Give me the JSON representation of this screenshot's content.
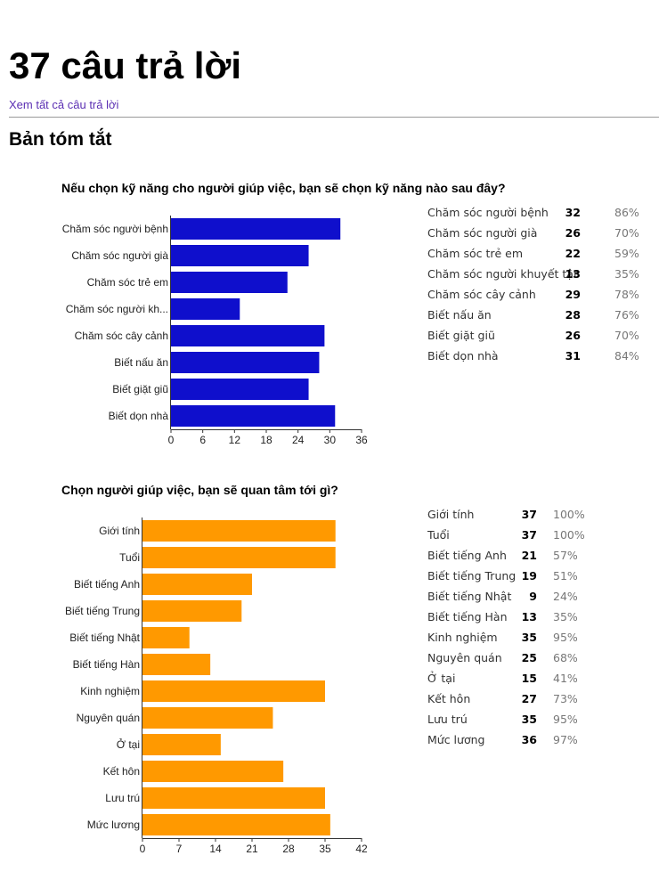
{
  "header": {
    "title": "37 câu trả lời",
    "view_all_link": "Xem tất cả câu trả lời",
    "summary_heading": "Bản tóm tắt"
  },
  "colors": {
    "q1_bar": "#0f0fcc",
    "q2_bar": "#ff9900",
    "link": "#5b2fb3"
  },
  "questions": [
    {
      "title": "Nếu chọn kỹ năng cho người giúp việc, bạn sẽ chọn kỹ năng nào sau đây?",
      "rows": [
        {
          "label": "Chăm sóc người bệnh",
          "count": "32",
          "percent": "86%"
        },
        {
          "label": "Chăm sóc người già",
          "count": "26",
          "percent": "70%"
        },
        {
          "label": "Chăm sóc trẻ em",
          "count": "22",
          "percent": "59%"
        },
        {
          "label": "Chăm sóc người khuyết tật",
          "count": "13",
          "percent": "35%"
        },
        {
          "label": "Chăm sóc cây cảnh",
          "count": "29",
          "percent": "78%"
        },
        {
          "label": "Biết nấu ăn",
          "count": "28",
          "percent": "76%"
        },
        {
          "label": "Biết giặt giũ",
          "count": "26",
          "percent": "70%"
        },
        {
          "label": "Biết dọn nhà",
          "count": "31",
          "percent": "84%"
        }
      ]
    },
    {
      "title": "Chọn người giúp việc, bạn sẽ quan tâm tới gì?",
      "rows": [
        {
          "label": "Giới tính",
          "count": "37",
          "percent": "100%"
        },
        {
          "label": "Tuổi",
          "count": "37",
          "percent": "100%"
        },
        {
          "label": "Biết tiếng Anh",
          "count": "21",
          "percent": "57%"
        },
        {
          "label": "Biết tiếng Trung",
          "count": "19",
          "percent": "51%"
        },
        {
          "label": "Biết tiếng Nhật",
          "count": "9",
          "percent": "24%"
        },
        {
          "label": "Biết tiếng Hàn",
          "count": "13",
          "percent": "35%"
        },
        {
          "label": "Kinh nghiệm",
          "count": "35",
          "percent": "95%"
        },
        {
          "label": "Nguyên quán",
          "count": "25",
          "percent": "68%"
        },
        {
          "label": "Ở tại",
          "count": "15",
          "percent": "41%"
        },
        {
          "label": "Kết hôn",
          "count": "27",
          "percent": "73%"
        },
        {
          "label": "Lưu trú",
          "count": "35",
          "percent": "95%"
        },
        {
          "label": "Mức lương",
          "count": "36",
          "percent": "97%"
        }
      ]
    }
  ],
  "chart_data": [
    {
      "type": "bar",
      "orientation": "horizontal",
      "categories": [
        "Chăm sóc người bệnh",
        "Chăm sóc người già",
        "Chăm sóc trẻ em",
        "Chăm sóc người kh...",
        "Chăm sóc cây cảnh",
        "Biết nấu ăn",
        "Biết giặt giũ",
        "Biết dọn nhà"
      ],
      "values": [
        32,
        26,
        22,
        13,
        29,
        28,
        26,
        31
      ],
      "xlim": [
        0,
        36
      ],
      "xticks": [
        "0",
        "6",
        "12",
        "18",
        "24",
        "30",
        "36"
      ],
      "color": "#0f0fcc",
      "grid": false,
      "legend": "none"
    },
    {
      "type": "bar",
      "orientation": "horizontal",
      "categories": [
        "Giới tính",
        "Tuổi",
        "Biết tiếng Anh",
        "Biết tiếng Trung",
        "Biết tiếng Nhật",
        "Biết tiếng Hàn",
        "Kinh nghiệm",
        "Nguyên quán",
        "Ở tại",
        "Kết hôn",
        "Lưu trú",
        "Mức lương"
      ],
      "values": [
        37,
        37,
        21,
        19,
        9,
        13,
        35,
        25,
        15,
        27,
        35,
        36
      ],
      "xlim": [
        0,
        42
      ],
      "xticks": [
        "0",
        "7",
        "14",
        "21",
        "28",
        "35",
        "42"
      ],
      "color": "#ff9900",
      "grid": false,
      "legend": "none"
    }
  ]
}
